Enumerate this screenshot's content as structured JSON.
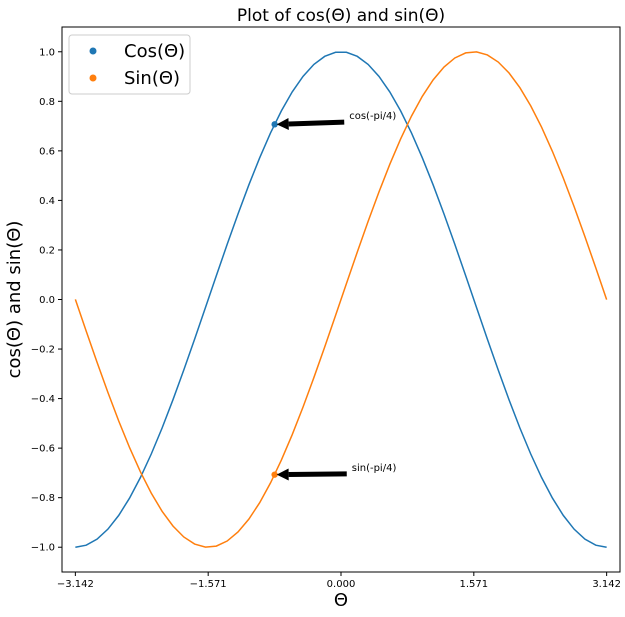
{
  "chart_data": {
    "type": "line",
    "title": "Plot of cos(Θ) and sin(Θ)",
    "xlabel": "Θ",
    "ylabel": "cos(Θ) and sin(Θ)",
    "xlim": [
      -3.3,
      3.3
    ],
    "ylim": [
      -1.1,
      1.1
    ],
    "x_ticks": [
      -3.142,
      -1.571,
      0.0,
      1.571,
      3.142
    ],
    "x_tick_labels": [
      "−3.142",
      "−1.571",
      "0.000",
      "1.571",
      "3.142"
    ],
    "y_ticks": [
      -1.0,
      -0.8,
      -0.6,
      -0.4,
      -0.2,
      0.0,
      0.2,
      0.4,
      0.6,
      0.8,
      1.0
    ],
    "y_tick_labels": [
      "−1.0",
      "−0.8",
      "−0.6",
      "−0.4",
      "−0.2",
      "0.0",
      "0.2",
      "0.4",
      "0.6",
      "0.8",
      "1.0"
    ],
    "x_range": [
      -3.142,
      3.142
    ],
    "point_count": 50,
    "series": [
      {
        "name": "Cos(Θ)",
        "function": "cos",
        "color": "#1f77b4"
      },
      {
        "name": "Sin(Θ)",
        "function": "sin",
        "color": "#ff7f0e"
      }
    ],
    "highlight_points": [
      {
        "series": "Cos(Θ)",
        "x": -0.785,
        "y": 0.707,
        "color": "#1f77b4"
      },
      {
        "series": "Sin(Θ)",
        "x": -0.785,
        "y": -0.707,
        "color": "#ff7f0e"
      }
    ],
    "annotations": [
      {
        "text": "cos(-pi/4)",
        "target_x": -0.785,
        "target_y": 0.707,
        "text_x": 0.05,
        "text_y": 0.72
      },
      {
        "text": "sin(-pi/4)",
        "target_x": -0.785,
        "target_y": -0.707,
        "text_x": 0.08,
        "text_y": -0.7
      }
    ],
    "legend": {
      "position": "top-left",
      "entries": [
        "Cos(Θ)",
        "Sin(Θ)"
      ]
    },
    "grid": false
  }
}
